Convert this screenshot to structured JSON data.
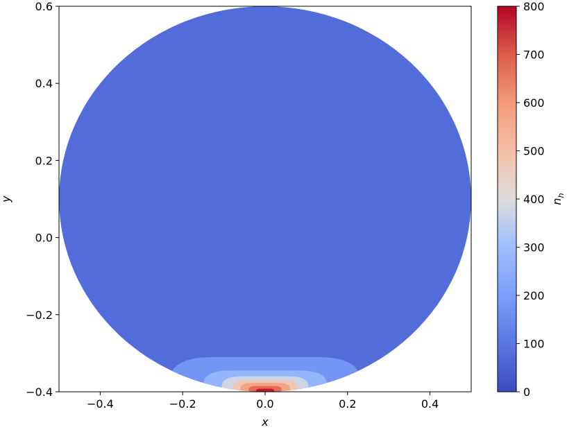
{
  "chart_data": {
    "type": "heatmap",
    "title": "",
    "xlabel": "x",
    "ylabel": "y",
    "xlim": [
      -0.5,
      0.5
    ],
    "ylim": [
      -0.4,
      0.6
    ],
    "x_ticks": [
      -0.4,
      -0.2,
      0.0,
      0.2,
      0.4
    ],
    "x_tick_labels": [
      "−0.4",
      "−0.2",
      "0.0",
      "0.2",
      "0.4"
    ],
    "y_ticks": [
      -0.4,
      -0.2,
      0.0,
      0.2,
      0.4,
      0.6
    ],
    "y_tick_labels": [
      "−0.4",
      "−0.2",
      "0.0",
      "0.2",
      "0.4",
      "0.6"
    ],
    "domain": {
      "shape": "disk",
      "center": [
        0.0,
        0.1
      ],
      "radius": 0.5
    },
    "colorbar": {
      "label": "n_h",
      "min": 0,
      "max": 800,
      "colormap": "coolwarm",
      "ticks": [
        0,
        100,
        200,
        300,
        400,
        500,
        600,
        700,
        800
      ],
      "tick_labels": [
        "0",
        "100",
        "200",
        "300",
        "400",
        "500",
        "600",
        "700",
        "800"
      ],
      "level_step": 50
    },
    "field": {
      "background_value": 75,
      "source_point": [
        0.0,
        -0.4
      ],
      "contour_levels": [
        {
          "value": 175,
          "extent_x": 0.23,
          "extent_y": 0.09
        },
        {
          "value": 275,
          "extent_x": 0.15,
          "extent_y": 0.055
        },
        {
          "value": 375,
          "extent_x": 0.105,
          "extent_y": 0.04
        },
        {
          "value": 475,
          "extent_x": 0.08,
          "extent_y": 0.03
        },
        {
          "value": 575,
          "extent_x": 0.06,
          "extent_y": 0.023
        },
        {
          "value": 675,
          "extent_x": 0.04,
          "extent_y": 0.015
        },
        {
          "value": 775,
          "extent_x": 0.022,
          "extent_y": 0.008
        }
      ]
    }
  }
}
